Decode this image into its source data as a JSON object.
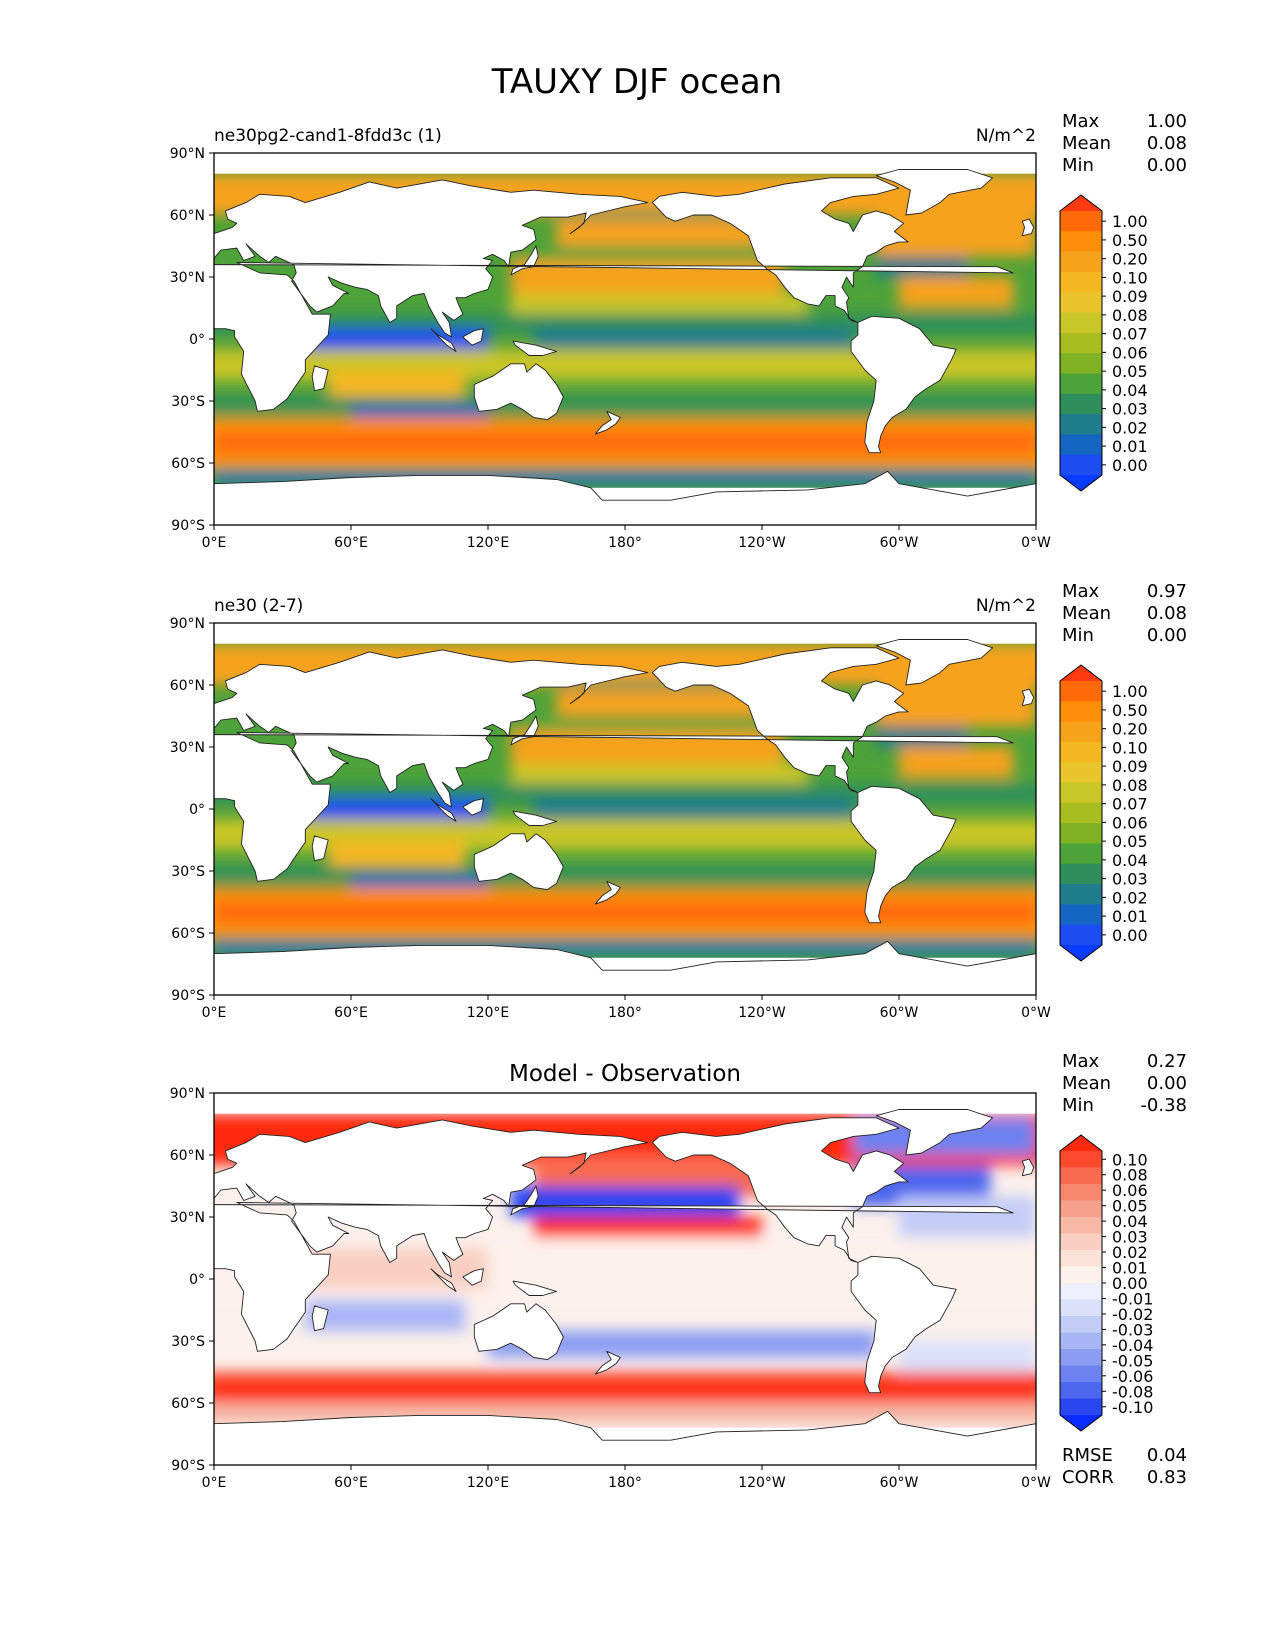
{
  "figure_title": "TAUXY DJF ocean",
  "colors": {
    "ocean_background": "#ffffff",
    "land": "#ffffff",
    "coast": "#222222"
  },
  "chart_data": [
    {
      "type": "heatmap",
      "title": "ne30pg2-cand1-8fdd3c (1)",
      "units": "N/m^2",
      "stats": [
        {
          "label": "Max",
          "value": "1.00"
        },
        {
          "label": "Mean",
          "value": "0.08"
        },
        {
          "label": "Min",
          "value": "0.00"
        }
      ],
      "x_ticks": [
        "0°E",
        "60°E",
        "120°E",
        "180°",
        "120°W",
        "60°W",
        "0°W"
      ],
      "y_ticks": [
        "90°N",
        "60°N",
        "30°N",
        "0°",
        "30°S",
        "60°S",
        "90°S"
      ],
      "colorbar": {
        "levels": [
          "1.00",
          "0.50",
          "0.20",
          "0.10",
          "0.09",
          "0.08",
          "0.07",
          "0.06",
          "0.05",
          "0.04",
          "0.03",
          "0.02",
          "0.01",
          "0.00"
        ],
        "colors": [
          "#ff3a10",
          "#ff6a08",
          "#ff8f0a",
          "#f7a21b",
          "#f5b820",
          "#e9c42c",
          "#c9c628",
          "#a8bd20",
          "#7fb325",
          "#4ea23a",
          "#2f8f5c",
          "#1f7d8c",
          "#1566c2",
          "#1d4cf0",
          "#0a3cff"
        ]
      },
      "field": "tau_model1"
    },
    {
      "type": "heatmap",
      "title": "ne30 (2-7)",
      "units": "N/m^2",
      "stats": [
        {
          "label": "Max",
          "value": "0.97"
        },
        {
          "label": "Mean",
          "value": "0.08"
        },
        {
          "label": "Min",
          "value": "0.00"
        }
      ],
      "x_ticks": [
        "0°E",
        "60°E",
        "120°E",
        "180°",
        "120°W",
        "60°W",
        "0°W"
      ],
      "y_ticks": [
        "90°N",
        "60°N",
        "30°N",
        "0°",
        "30°S",
        "60°S",
        "90°S"
      ],
      "colorbar": {
        "levels": [
          "1.00",
          "0.50",
          "0.20",
          "0.10",
          "0.09",
          "0.08",
          "0.07",
          "0.06",
          "0.05",
          "0.04",
          "0.03",
          "0.02",
          "0.01",
          "0.00"
        ],
        "colors": [
          "#ff3a10",
          "#ff6a08",
          "#ff8f0a",
          "#f7a21b",
          "#f5b820",
          "#e9c42c",
          "#c9c628",
          "#a8bd20",
          "#7fb325",
          "#4ea23a",
          "#2f8f5c",
          "#1f7d8c",
          "#1566c2",
          "#1d4cf0",
          "#0a3cff"
        ]
      },
      "field": "tau_model2"
    },
    {
      "type": "heatmap",
      "title": "Model - Observation",
      "units": "",
      "stats": [
        {
          "label": "Max",
          "value": "0.27"
        },
        {
          "label": "Mean",
          "value": "0.00"
        },
        {
          "label": "Min",
          "value": "-0.38"
        }
      ],
      "bottom_stats": [
        {
          "label": "RMSE",
          "value": "0.04"
        },
        {
          "label": "CORR",
          "value": "0.83"
        }
      ],
      "x_ticks": [
        "0°E",
        "60°E",
        "120°E",
        "180°",
        "120°W",
        "60°W",
        "0°W"
      ],
      "y_ticks": [
        "90°N",
        "60°N",
        "30°N",
        "0°",
        "30°S",
        "60°S",
        "90°S"
      ],
      "colorbar": {
        "levels": [
          "0.10",
          "0.08",
          "0.06",
          "0.05",
          "0.04",
          "0.03",
          "0.02",
          "0.01",
          "0.00",
          "-0.01",
          "-0.02",
          "-0.03",
          "-0.04",
          "-0.05",
          "-0.06",
          "-0.08",
          "-0.10"
        ],
        "colors": [
          "#ff2a10",
          "#fb4a2e",
          "#f96a50",
          "#f7876e",
          "#f7a08a",
          "#f7b8a6",
          "#f9cfc2",
          "#fbe2d9",
          "#fdf1ec",
          "#eef0fd",
          "#dbe0fb",
          "#c4ccf8",
          "#a9b6f6",
          "#8c9df3",
          "#6d82f0",
          "#4d66ee",
          "#2a46f0",
          "#0a2cff"
        ]
      },
      "field": "tau_diff"
    }
  ]
}
